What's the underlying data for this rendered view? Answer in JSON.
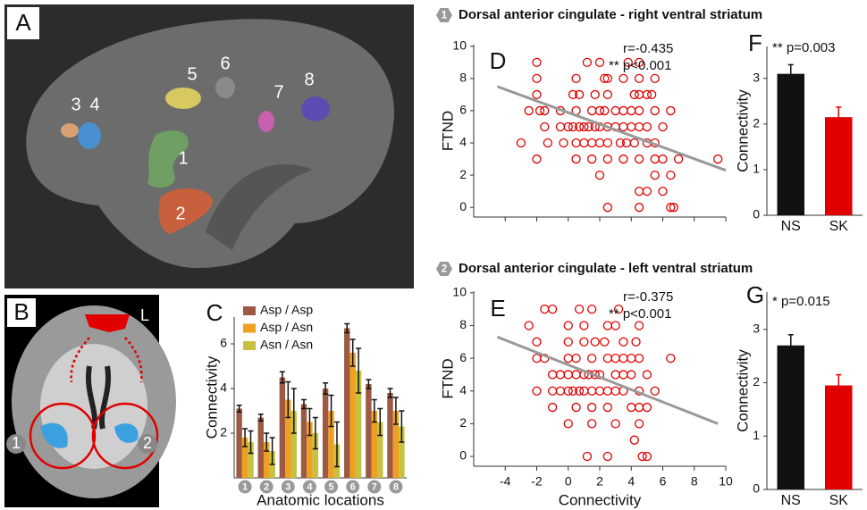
{
  "images": [
    {
      "panel": "A",
      "labels": [
        "1",
        "2",
        "3",
        "4",
        "5",
        "6",
        "7",
        "8"
      ]
    },
    {
      "panel": "B",
      "labels": [
        "L",
        "1",
        "2"
      ]
    }
  ],
  "chart_data": [
    {
      "type": "bar",
      "panel": "C",
      "ylabel": "Connectivity",
      "xlabel": "Anatomic locations",
      "categories": [
        "1",
        "2",
        "3",
        "4",
        "5",
        "6",
        "7",
        "8"
      ],
      "series": [
        {
          "name": "Asp / Asp",
          "color": "#9c5a44",
          "values": [
            3.1,
            2.7,
            4.5,
            3.3,
            4.0,
            6.7,
            4.2,
            3.8
          ],
          "errors": [
            0.15,
            0.15,
            0.25,
            0.2,
            0.25,
            0.2,
            0.2,
            0.2
          ]
        },
        {
          "name": "Asp / Asn",
          "color": "#f0a020",
          "values": [
            1.8,
            1.6,
            3.5,
            2.5,
            3.0,
            5.6,
            3.0,
            3.0
          ],
          "errors": [
            0.4,
            0.4,
            0.8,
            0.6,
            0.7,
            0.6,
            0.5,
            0.6
          ]
        },
        {
          "name": "Asn / Asn",
          "color": "#c8c040",
          "values": [
            1.6,
            1.2,
            3.0,
            2.0,
            1.5,
            4.8,
            2.5,
            2.3
          ],
          "errors": [
            0.5,
            0.6,
            1.0,
            0.7,
            1.0,
            1.0,
            0.6,
            0.7
          ]
        }
      ],
      "error_color": "#111111",
      "ylim": [
        0,
        7.2
      ],
      "yticks": [
        2,
        4,
        6
      ]
    },
    {
      "type": "scatter",
      "panel": "D",
      "title_number": "1",
      "title": "Dorsal anterior cingulate - right ventral striatum",
      "ylabel": "FTND",
      "annotations": [
        "r=-0.435",
        "** p<0.001"
      ],
      "color": "#e00000",
      "x": [
        -2,
        1.2,
        2,
        3.8,
        4.5,
        -2,
        0.5,
        2.3,
        2.5,
        3.5,
        4.5,
        5.5,
        -2,
        0.3,
        0.7,
        1.7,
        2.5,
        4.2,
        4.5,
        5,
        5.3,
        -2.5,
        -1.8,
        -1.5,
        -0.5,
        0.5,
        1.5,
        2,
        2.3,
        3,
        3.5,
        4,
        4.5,
        5.5,
        6.5,
        -1.5,
        -0.5,
        0,
        0.3,
        0.7,
        1,
        1.3,
        1.7,
        2,
        2.5,
        3,
        3.5,
        4,
        4.5,
        5,
        6,
        -3,
        -1.3,
        -0.3,
        0.5,
        1,
        1.5,
        2,
        2.5,
        3.3,
        3.7,
        4.2,
        5,
        5.5,
        -2,
        0.5,
        1.5,
        2.5,
        3.5,
        4.5,
        5.5,
        6,
        7,
        9.5,
        2,
        5.5,
        6.5,
        4.5,
        5,
        6,
        2.5,
        4.5,
        6.5,
        6.7
      ],
      "values": [
        9,
        9,
        9,
        9,
        9,
        8,
        8,
        8,
        8,
        8,
        8,
        8,
        7,
        7,
        7,
        7,
        7,
        7,
        7,
        7,
        7,
        6,
        6,
        6,
        6,
        6,
        6,
        6,
        6,
        6,
        6,
        6,
        6,
        6,
        6,
        5,
        5,
        5,
        5,
        5,
        5,
        5,
        5,
        5,
        5,
        5,
        5,
        5,
        5,
        5,
        5,
        4,
        4,
        4,
        4,
        4,
        4,
        4,
        4,
        4,
        4,
        4,
        4,
        4,
        3,
        3,
        3,
        3,
        3,
        3,
        3,
        3,
        3,
        3,
        2,
        2,
        2,
        1,
        1,
        1,
        0,
        0,
        0,
        0
      ],
      "fit": {
        "x": [
          -4.5,
          10
        ],
        "values": [
          7.5,
          2.3
        ],
        "color": "#999999"
      },
      "xlim": [
        -6,
        10
      ],
      "xticks": [
        -4,
        -2,
        0,
        2,
        4,
        6,
        8,
        10
      ],
      "xtick_labels": false,
      "ylim": [
        -0.6,
        10.1
      ],
      "yticks": [
        0,
        2,
        4,
        6,
        8,
        10
      ]
    },
    {
      "type": "scatter",
      "panel": "E",
      "title_number": "2",
      "title": "Dorsal anterior cingulate - left ventral striatum",
      "ylabel": "FTND",
      "xlabel": "Connectivity",
      "annotations": [
        "r=-0.375",
        "** p<0.001"
      ],
      "color": "#e00000",
      "x": [
        -1.5,
        -1,
        0.7,
        1.5,
        3.2,
        -2.5,
        0,
        1,
        2.5,
        3,
        4.5,
        -2,
        0,
        1,
        1.7,
        2.3,
        3.5,
        4.3,
        -2,
        -1.5,
        0,
        0.5,
        1.5,
        2.5,
        3,
        3.5,
        4,
        4.5,
        6.5,
        -1,
        -0.5,
        0,
        0.5,
        1,
        1.3,
        1.7,
        2,
        3,
        3.5,
        4,
        5,
        -2,
        -1,
        -0.5,
        0,
        0.3,
        0.7,
        1,
        1.5,
        2,
        2.5,
        3,
        3.5,
        4.5,
        5.5,
        -1,
        0.5,
        1.5,
        2.5,
        4,
        4.5,
        5,
        0,
        1.5,
        3,
        4.5,
        4.2,
        1.2,
        2.5,
        4.7,
        5
      ],
      "values": [
        9,
        9,
        9,
        9,
        9,
        8,
        8,
        8,
        8,
        8,
        8,
        7,
        7,
        7,
        7,
        7,
        7,
        7,
        6,
        6,
        6,
        6,
        6,
        6,
        6,
        6,
        6,
        6,
        6,
        5,
        5,
        5,
        5,
        5,
        5,
        5,
        5,
        5,
        5,
        5,
        5,
        4,
        4,
        4,
        4,
        4,
        4,
        4,
        4,
        4,
        4,
        4,
        4,
        4,
        4,
        3,
        3,
        3,
        3,
        3,
        3,
        3,
        2,
        2,
        2,
        2,
        1,
        0,
        0,
        0,
        0
      ],
      "fit": {
        "x": [
          -4.5,
          9.5
        ],
        "values": [
          7.3,
          2.0
        ],
        "color": "#999999"
      },
      "xlim": [
        -6,
        10
      ],
      "xticks": [
        -4,
        -2,
        0,
        2,
        4,
        6,
        8,
        10
      ],
      "ylim": [
        -0.6,
        10.1
      ],
      "yticks": [
        0,
        2,
        4,
        6,
        8,
        10
      ]
    },
    {
      "type": "bar",
      "panel": "F",
      "ylabel": "Connectivity",
      "annotations": [
        "** p=0.003"
      ],
      "categories": [
        "NS",
        "SK"
      ],
      "series": [
        {
          "colors": [
            "#111111",
            "#e00000"
          ],
          "values": [
            3.1,
            2.15
          ],
          "errors": [
            0.2,
            0.22
          ]
        }
      ],
      "ylim": [
        0,
        3.7
      ],
      "yticks": [
        0,
        1,
        2,
        3
      ]
    },
    {
      "type": "bar",
      "panel": "G",
      "ylabel": "Connectivity",
      "annotations": [
        "* p=0.015"
      ],
      "categories": [
        "NS",
        "SK"
      ],
      "series": [
        {
          "colors": [
            "#111111",
            "#e00000"
          ],
          "values": [
            2.7,
            1.95
          ],
          "errors": [
            0.2,
            0.2
          ]
        }
      ],
      "ylim": [
        0,
        3.7
      ],
      "yticks": [
        0,
        1,
        2,
        3
      ]
    }
  ]
}
